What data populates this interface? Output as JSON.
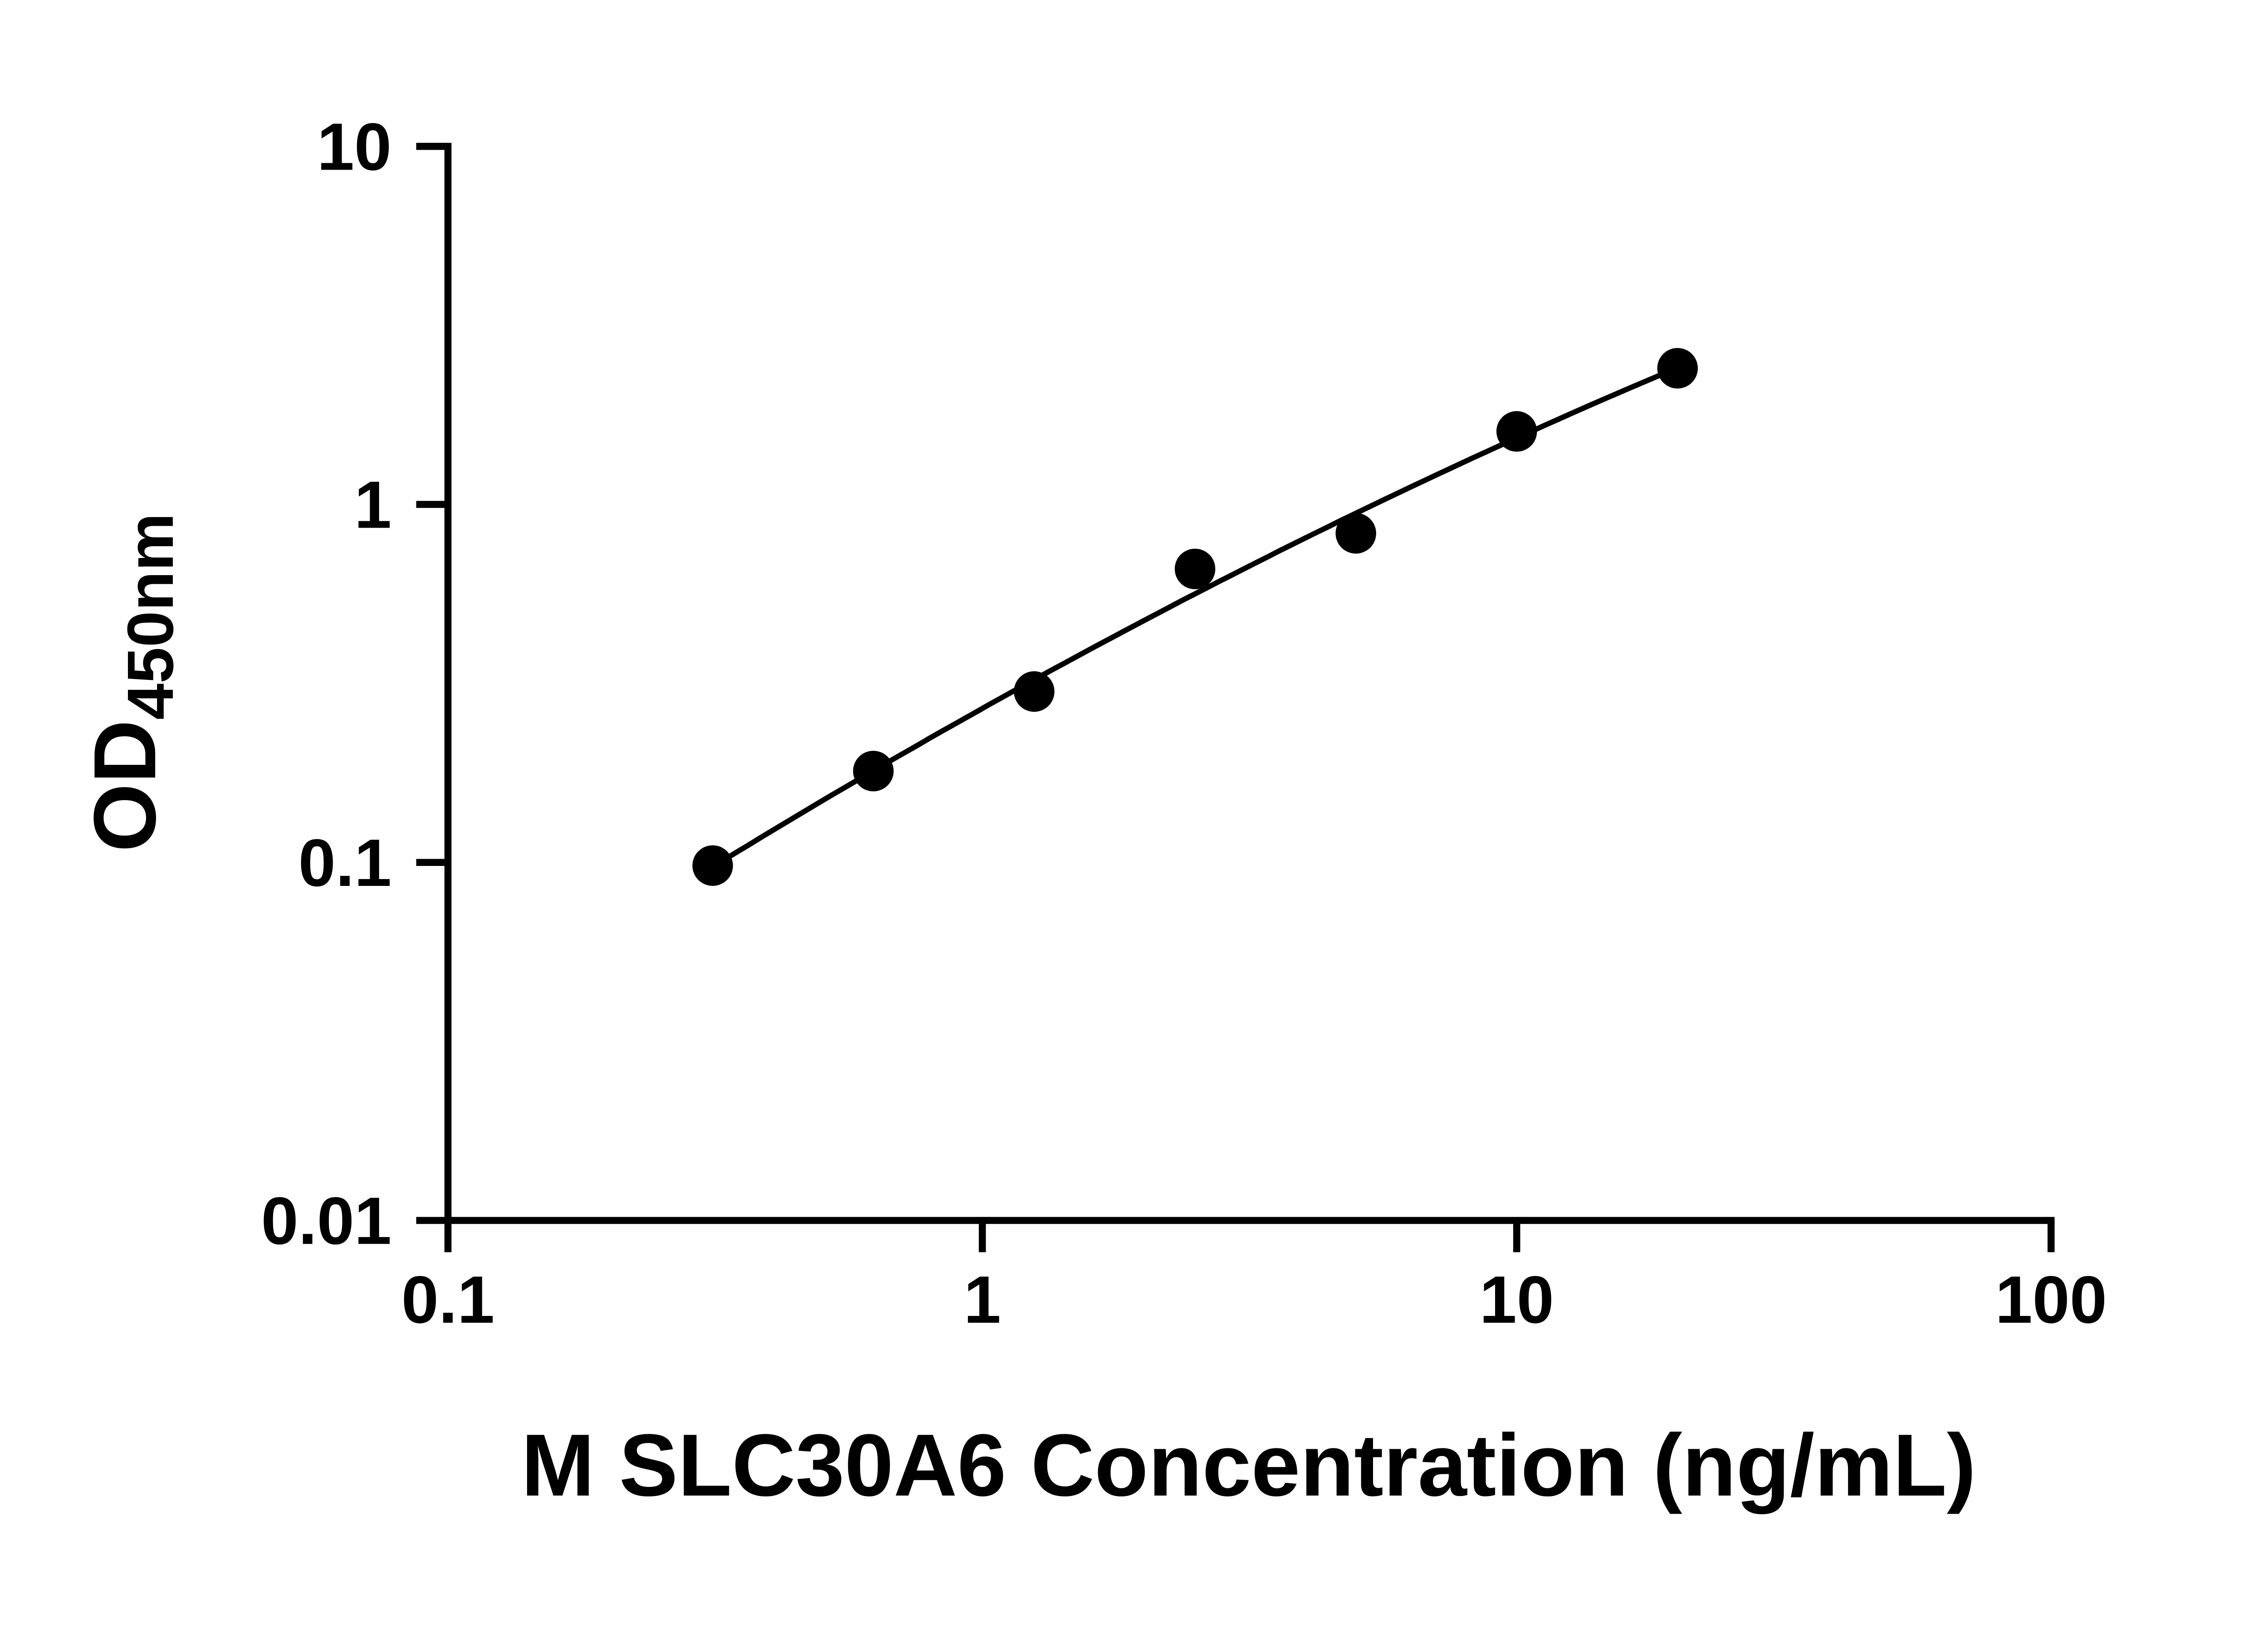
{
  "figure": {
    "background": "#ffffff",
    "ink_color": "#000000"
  },
  "chart_data": {
    "type": "scatter",
    "title": "",
    "xlabel": "M SLC30A6 Concentration (ng/mL)",
    "ylabel_main": "OD",
    "ylabel_sub": "450nm",
    "x_scale": "log",
    "y_scale": "log",
    "xlim": [
      0.1,
      100
    ],
    "ylim": [
      0.01,
      10
    ],
    "x": [
      0.313,
      0.625,
      1.25,
      2.5,
      5,
      10,
      20
    ],
    "y": [
      0.098,
      0.18,
      0.3,
      0.66,
      0.83,
      1.6,
      2.4
    ],
    "fit": "smooth standard-curve fit through points (log-log quadratic)",
    "x_ticks": {
      "values": [
        0.1,
        1,
        10,
        100
      ],
      "labels": [
        "0.1",
        "1",
        "10",
        "100"
      ]
    },
    "y_ticks": {
      "values": [
        0.01,
        0.1,
        1,
        10
      ],
      "labels": [
        "0.01",
        "0.1",
        "1",
        "10"
      ]
    },
    "grid": false,
    "legend": null,
    "marker": {
      "shape": "circle",
      "color": "#000000",
      "radius": 11.5
    },
    "line": {
      "color": "#000000",
      "width": 3
    },
    "axis": {
      "color": "#000000",
      "width": 4,
      "tick_length": 18,
      "ticks_direction": "out"
    }
  }
}
